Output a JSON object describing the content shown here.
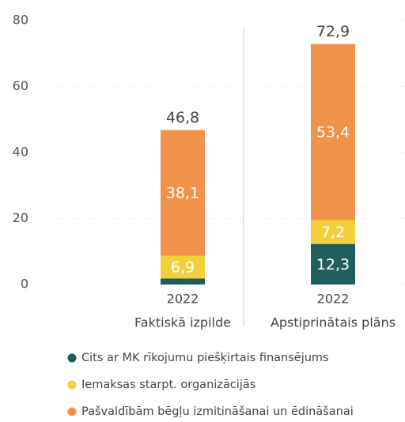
{
  "chart_data": {
    "type": "stacked-bar",
    "categories": [
      "2022",
      "2022"
    ],
    "groups": [
      "Faktiskā izpilde",
      "Apstiprinātais plāns"
    ],
    "series": [
      {
        "name": "Cits ar MK rīkojumu piešķirtais finansējums",
        "color": "#235e5f",
        "values": [
          1.8,
          12.3
        ],
        "value_labels": [
          null,
          "12,3"
        ]
      },
      {
        "name": "Iemaksas starpt. organizācijās",
        "color": "#f2d03c",
        "values": [
          6.9,
          7.2
        ],
        "value_labels": [
          "6,9",
          "7,2"
        ]
      },
      {
        "name": "Pašvaldībām bēgļu izmitināšanai un ēdināšanai",
        "color": "#f0924a",
        "values": [
          38.1,
          53.4
        ],
        "value_labels": [
          "38,1",
          "53,4"
        ]
      }
    ],
    "totals": [
      46.8,
      72.9
    ],
    "total_labels": [
      "46,8",
      "72,9"
    ],
    "ylim": [
      0,
      80
    ],
    "yticks": [
      0,
      20,
      40,
      60,
      80
    ],
    "grid": true
  }
}
